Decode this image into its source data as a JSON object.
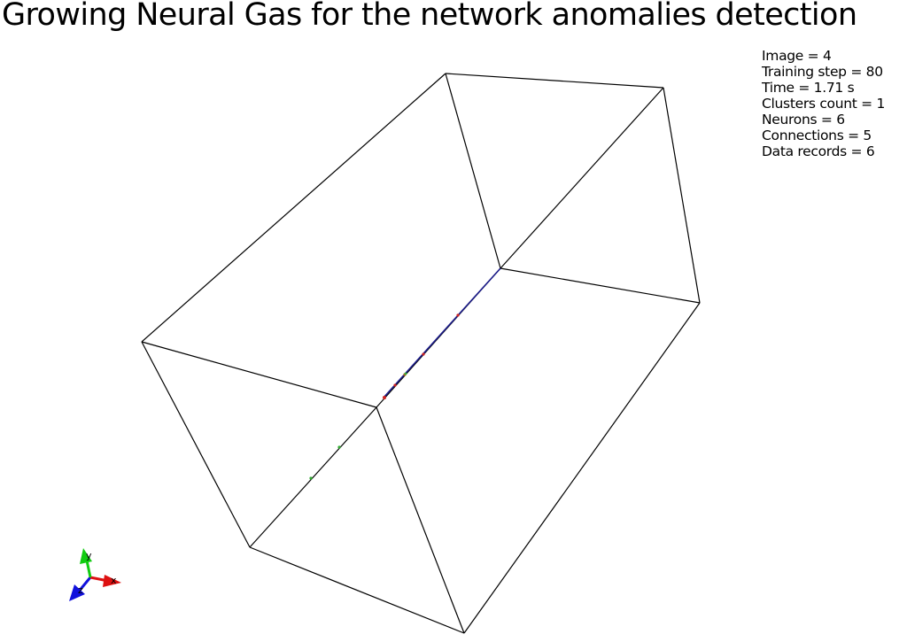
{
  "title": "Growing Neural Gas for the network anomalies detection",
  "stats": [
    "Image = 4",
    "Training step = 80",
    "Time = 1.71 s",
    "Clusters count = 1",
    "Neurons = 6",
    "Connections = 5",
    "Data records = 6"
  ],
  "axes_labels": {
    "x": "x",
    "y": "y",
    "z": "z"
  },
  "colors": {
    "background": "#ffffff",
    "box_edges": "#000000",
    "gng_connection": "#1b1b8a",
    "neuron": "#cc2222",
    "data_record": "#33aa33",
    "axis_x": "#dd1111",
    "axis_y": "#11cc11",
    "axis_z": "#1111dd"
  }
}
